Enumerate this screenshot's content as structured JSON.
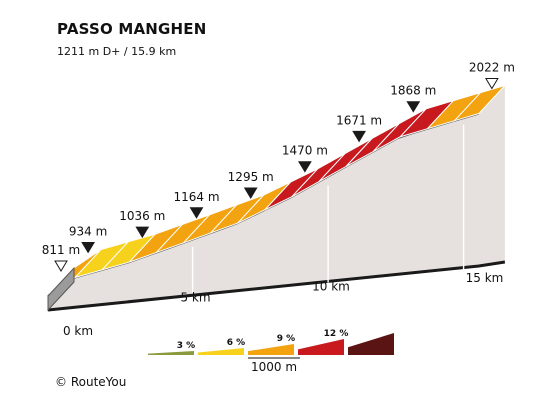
{
  "header": {
    "title": "PASSO MANGHEN",
    "subtitle": "1211 m D+ / 15.9 km"
  },
  "footer": {
    "copyright_symbol": "©",
    "brand": "RouteYou"
  },
  "chart_data": {
    "type": "area",
    "title": "PASSO MANGHEN",
    "subtitle": "1211 m D+ / 15.9 km",
    "x_unit": "km",
    "y_unit": "m",
    "start_label": "811 m",
    "end_label": "2022 m",
    "checkpoints": [
      {
        "km": 0,
        "elevation": 811,
        "label": "811 m",
        "marker": "start"
      },
      {
        "km": 1,
        "elevation": 934,
        "label": "934 m",
        "marker": "point"
      },
      {
        "km": 3,
        "elevation": 1036,
        "label": "1036 m",
        "marker": "point"
      },
      {
        "km": 5,
        "elevation": 1164,
        "label": "1164 m",
        "marker": "point"
      },
      {
        "km": 7,
        "elevation": 1295,
        "label": "1295 m",
        "marker": "point"
      },
      {
        "km": 9,
        "elevation": 1470,
        "label": "1470 m",
        "marker": "point"
      },
      {
        "km": 11,
        "elevation": 1671,
        "label": "1671 m",
        "marker": "point"
      },
      {
        "km": 13,
        "elevation": 1868,
        "label": "1868 m",
        "marker": "point"
      },
      {
        "km": 15.9,
        "elevation": 2022,
        "label": "2022 m",
        "marker": "end"
      }
    ],
    "segments": [
      {
        "from_km": 0,
        "to_km": 1,
        "gradient_class": "9%"
      },
      {
        "from_km": 1,
        "to_km": 2,
        "gradient_class": "6%"
      },
      {
        "from_km": 2,
        "to_km": 3,
        "gradient_class": "6%"
      },
      {
        "from_km": 3,
        "to_km": 4,
        "gradient_class": "9%"
      },
      {
        "from_km": 4,
        "to_km": 5,
        "gradient_class": "9%"
      },
      {
        "from_km": 5,
        "to_km": 6,
        "gradient_class": "9%"
      },
      {
        "from_km": 6,
        "to_km": 7,
        "gradient_class": "9%"
      },
      {
        "from_km": 7,
        "to_km": 8,
        "gradient_class": "9%"
      },
      {
        "from_km": 8,
        "to_km": 9,
        "gradient_class": "12%"
      },
      {
        "from_km": 9,
        "to_km": 10,
        "gradient_class": "12%"
      },
      {
        "from_km": 10,
        "to_km": 11,
        "gradient_class": "12%"
      },
      {
        "from_km": 11,
        "to_km": 12,
        "gradient_class": "12%"
      },
      {
        "from_km": 12,
        "to_km": 13,
        "gradient_class": "12%"
      },
      {
        "from_km": 13,
        "to_km": 14,
        "gradient_class": "12%"
      },
      {
        "from_km": 14,
        "to_km": 15,
        "gradient_class": "9%"
      },
      {
        "from_km": 15,
        "to_km": 15.9,
        "gradient_class": "9%"
      }
    ],
    "km_ticks": [
      {
        "km": 0,
        "label": "0 km"
      },
      {
        "km": 5,
        "label": "5 km"
      },
      {
        "km": 10,
        "label": "10 km"
      },
      {
        "km": 15,
        "label": "15 km"
      }
    ],
    "legend": {
      "scale_label": "1000 m",
      "items": [
        {
          "label": "3 %",
          "color": "#8a9a3c"
        },
        {
          "label": "6 %",
          "color": "#f6d21c"
        },
        {
          "label": "9 %",
          "color": "#f2a30f"
        },
        {
          "label": "12 %",
          "color": "#c8191f"
        },
        {
          "label": "",
          "color": "#5a1414"
        }
      ]
    },
    "colors": {
      "3%": "#8a9a3c",
      "6%": "#f6d21c",
      "9%": "#f2a30f",
      "12%": "#c8191f",
      "side": "#e6e1de",
      "outline": "#1a1a1a",
      "marker": "#1a1a1a"
    }
  }
}
